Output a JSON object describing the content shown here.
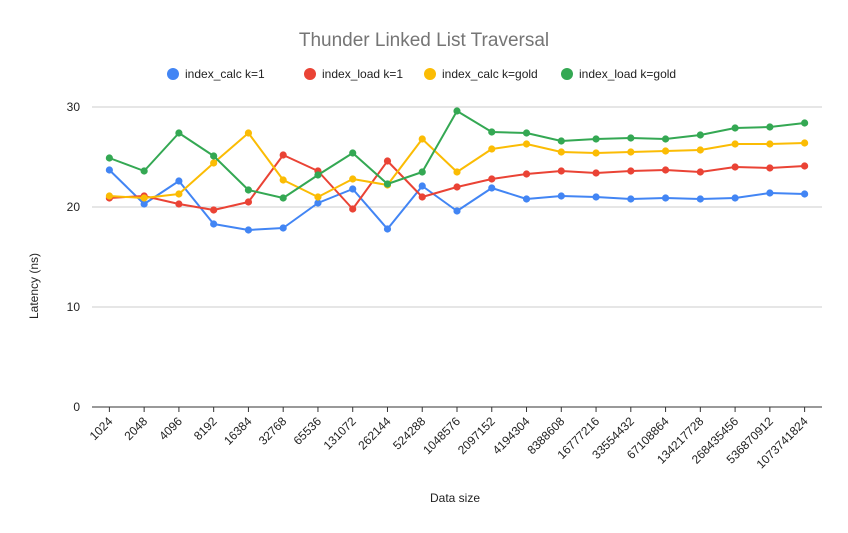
{
  "chart_data": {
    "type": "line",
    "title": "Thunder Linked List Traversal",
    "xlabel": "Data size",
    "ylabel": "Latency (ns)",
    "ylim": [
      0,
      30
    ],
    "yticks": [
      "0",
      "10",
      "20",
      "30"
    ],
    "grid": "horizontal",
    "legend_position": "top",
    "categories": [
      "1024",
      "2048",
      "4096",
      "8192",
      "16384",
      "32768",
      "65536",
      "131072",
      "262144",
      "524288",
      "1048576",
      "2097152",
      "4194304",
      "8388608",
      "16777216",
      "33554432",
      "67108864",
      "134217728",
      "268435456",
      "536870912",
      "1073741824"
    ],
    "series": [
      {
        "name": "index_calc k=1",
        "color": "#4285f4",
        "values": [
          23.7,
          20.3,
          22.6,
          18.3,
          17.7,
          17.9,
          20.4,
          21.8,
          17.8,
          22.1,
          19.6,
          21.9,
          20.8,
          21.1,
          21.0,
          20.8,
          20.9,
          20.8,
          20.9,
          21.4,
          21.3
        ]
      },
      {
        "name": "index_load k=1",
        "color": "#ea4335",
        "values": [
          20.9,
          21.1,
          20.3,
          19.7,
          20.5,
          25.2,
          23.6,
          19.8,
          24.6,
          21.0,
          22.0,
          22.8,
          23.3,
          23.6,
          23.4,
          23.6,
          23.7,
          23.5,
          24.0,
          23.9,
          24.1
        ]
      },
      {
        "name": "index_calc k=gold",
        "color": "#fbbc04",
        "values": [
          21.1,
          20.9,
          21.3,
          24.4,
          27.4,
          22.7,
          21.0,
          22.8,
          22.2,
          26.8,
          23.5,
          25.8,
          26.3,
          25.5,
          25.4,
          25.5,
          25.6,
          25.7,
          26.3,
          26.3,
          26.4
        ]
      },
      {
        "name": "index_load k=gold",
        "color": "#34a853",
        "values": [
          24.9,
          23.6,
          27.4,
          25.1,
          21.7,
          20.9,
          23.2,
          25.4,
          22.3,
          23.5,
          29.6,
          27.5,
          27.4,
          26.6,
          26.8,
          26.9,
          26.8,
          27.2,
          27.9,
          28.0,
          28.4
        ]
      }
    ]
  }
}
